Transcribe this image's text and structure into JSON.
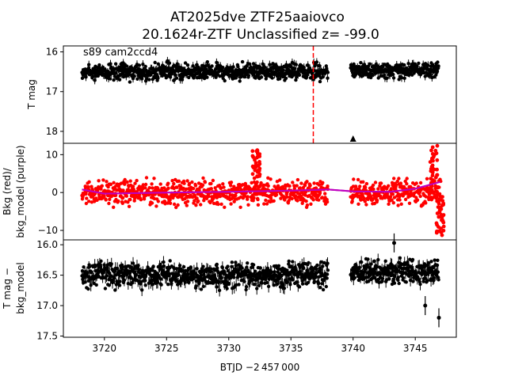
{
  "title_line1": "AT2025dve  ZTF25aaiovco",
  "title_line2": "20.1624r-ZTF Unclassified z= -99.0",
  "annotation": "s89 cam2ccd4",
  "xlabel": "BTJD −2 457 000",
  "x_ticks": [
    "3720",
    "3725",
    "3730",
    "3735",
    "3740",
    "3745"
  ],
  "chart_data": [
    {
      "type": "scatter",
      "panel": "top",
      "ylabel": "T mag",
      "y_inverted": true,
      "xlim": [
        3716.7,
        3748.3
      ],
      "ylim": [
        18.3,
        15.85
      ],
      "y_ticks": [
        "16",
        "17",
        "18"
      ],
      "series": [
        {
          "color": "#000000",
          "x_range": [
            3718.2,
            3738.0
          ],
          "y_center": 16.5,
          "y_spread": 0.25,
          "error_bars": true
        },
        {
          "color": "#000000",
          "x_range": [
            3739.8,
            3746.9
          ],
          "y_center": 16.45,
          "y_spread": 0.25,
          "error_bars": true
        }
      ],
      "vline": {
        "x": 3736.8,
        "color": "#ff0000",
        "style": "dashed"
      },
      "marker": {
        "x": 3740.0,
        "y": 18.25,
        "shape": "triangle-up",
        "color": "#000000"
      }
    },
    {
      "type": "scatter",
      "panel": "middle",
      "ylabel": "Bkg (red)/ bkg_model (purple)",
      "xlim": [
        3716.7,
        3748.3
      ],
      "ylim": [
        -12.5,
        13
      ],
      "y_ticks": [
        "10",
        "0",
        "−10"
      ],
      "series": [
        {
          "color": "#ff0000",
          "x_range": [
            3718.2,
            3738.0
          ],
          "y_center": 0,
          "y_spread": 4
        },
        {
          "color": "#ff0000",
          "x_range": [
            3739.8,
            3747.1
          ],
          "y_center": 0,
          "y_spread": 4
        },
        {
          "color": "#bf00bf",
          "type": "line",
          "x": [
            3718.2,
            3720,
            3725,
            3730,
            3735,
            3738,
            3740,
            3743,
            3745,
            3747
          ],
          "y": [
            0.8,
            -0.3,
            0,
            0.2,
            0.5,
            0.8,
            0.3,
            0.2,
            1.0,
            2.8
          ]
        }
      ],
      "spikes": [
        {
          "x": 3732.2,
          "peak": 12
        },
        {
          "x": 3746.5,
          "peak": 12.5
        },
        {
          "x": 3747.0,
          "trough": -11.5
        }
      ]
    },
    {
      "type": "scatter",
      "panel": "bottom",
      "ylabel": "T mag − bkg_model",
      "y_inverted": true,
      "xlim": [
        3716.7,
        3748.3
      ],
      "ylim": [
        17.52,
        15.92
      ],
      "y_ticks": [
        "16.0",
        "16.5",
        "17.0",
        "17.5"
      ],
      "series": [
        {
          "color": "#000000",
          "x_range": [
            3718.2,
            3738.0
          ],
          "y_center": 16.5,
          "y_spread": 0.25,
          "error_bars": true
        },
        {
          "color": "#000000",
          "x_range": [
            3739.8,
            3746.9
          ],
          "y_center": 16.45,
          "y_spread": 0.25,
          "error_bars": true
        }
      ],
      "outliers": [
        {
          "x": 3743.3,
          "y": 15.97
        },
        {
          "x": 3745.8,
          "y": 17.0
        },
        {
          "x": 3746.9,
          "y": 17.2
        }
      ]
    }
  ]
}
